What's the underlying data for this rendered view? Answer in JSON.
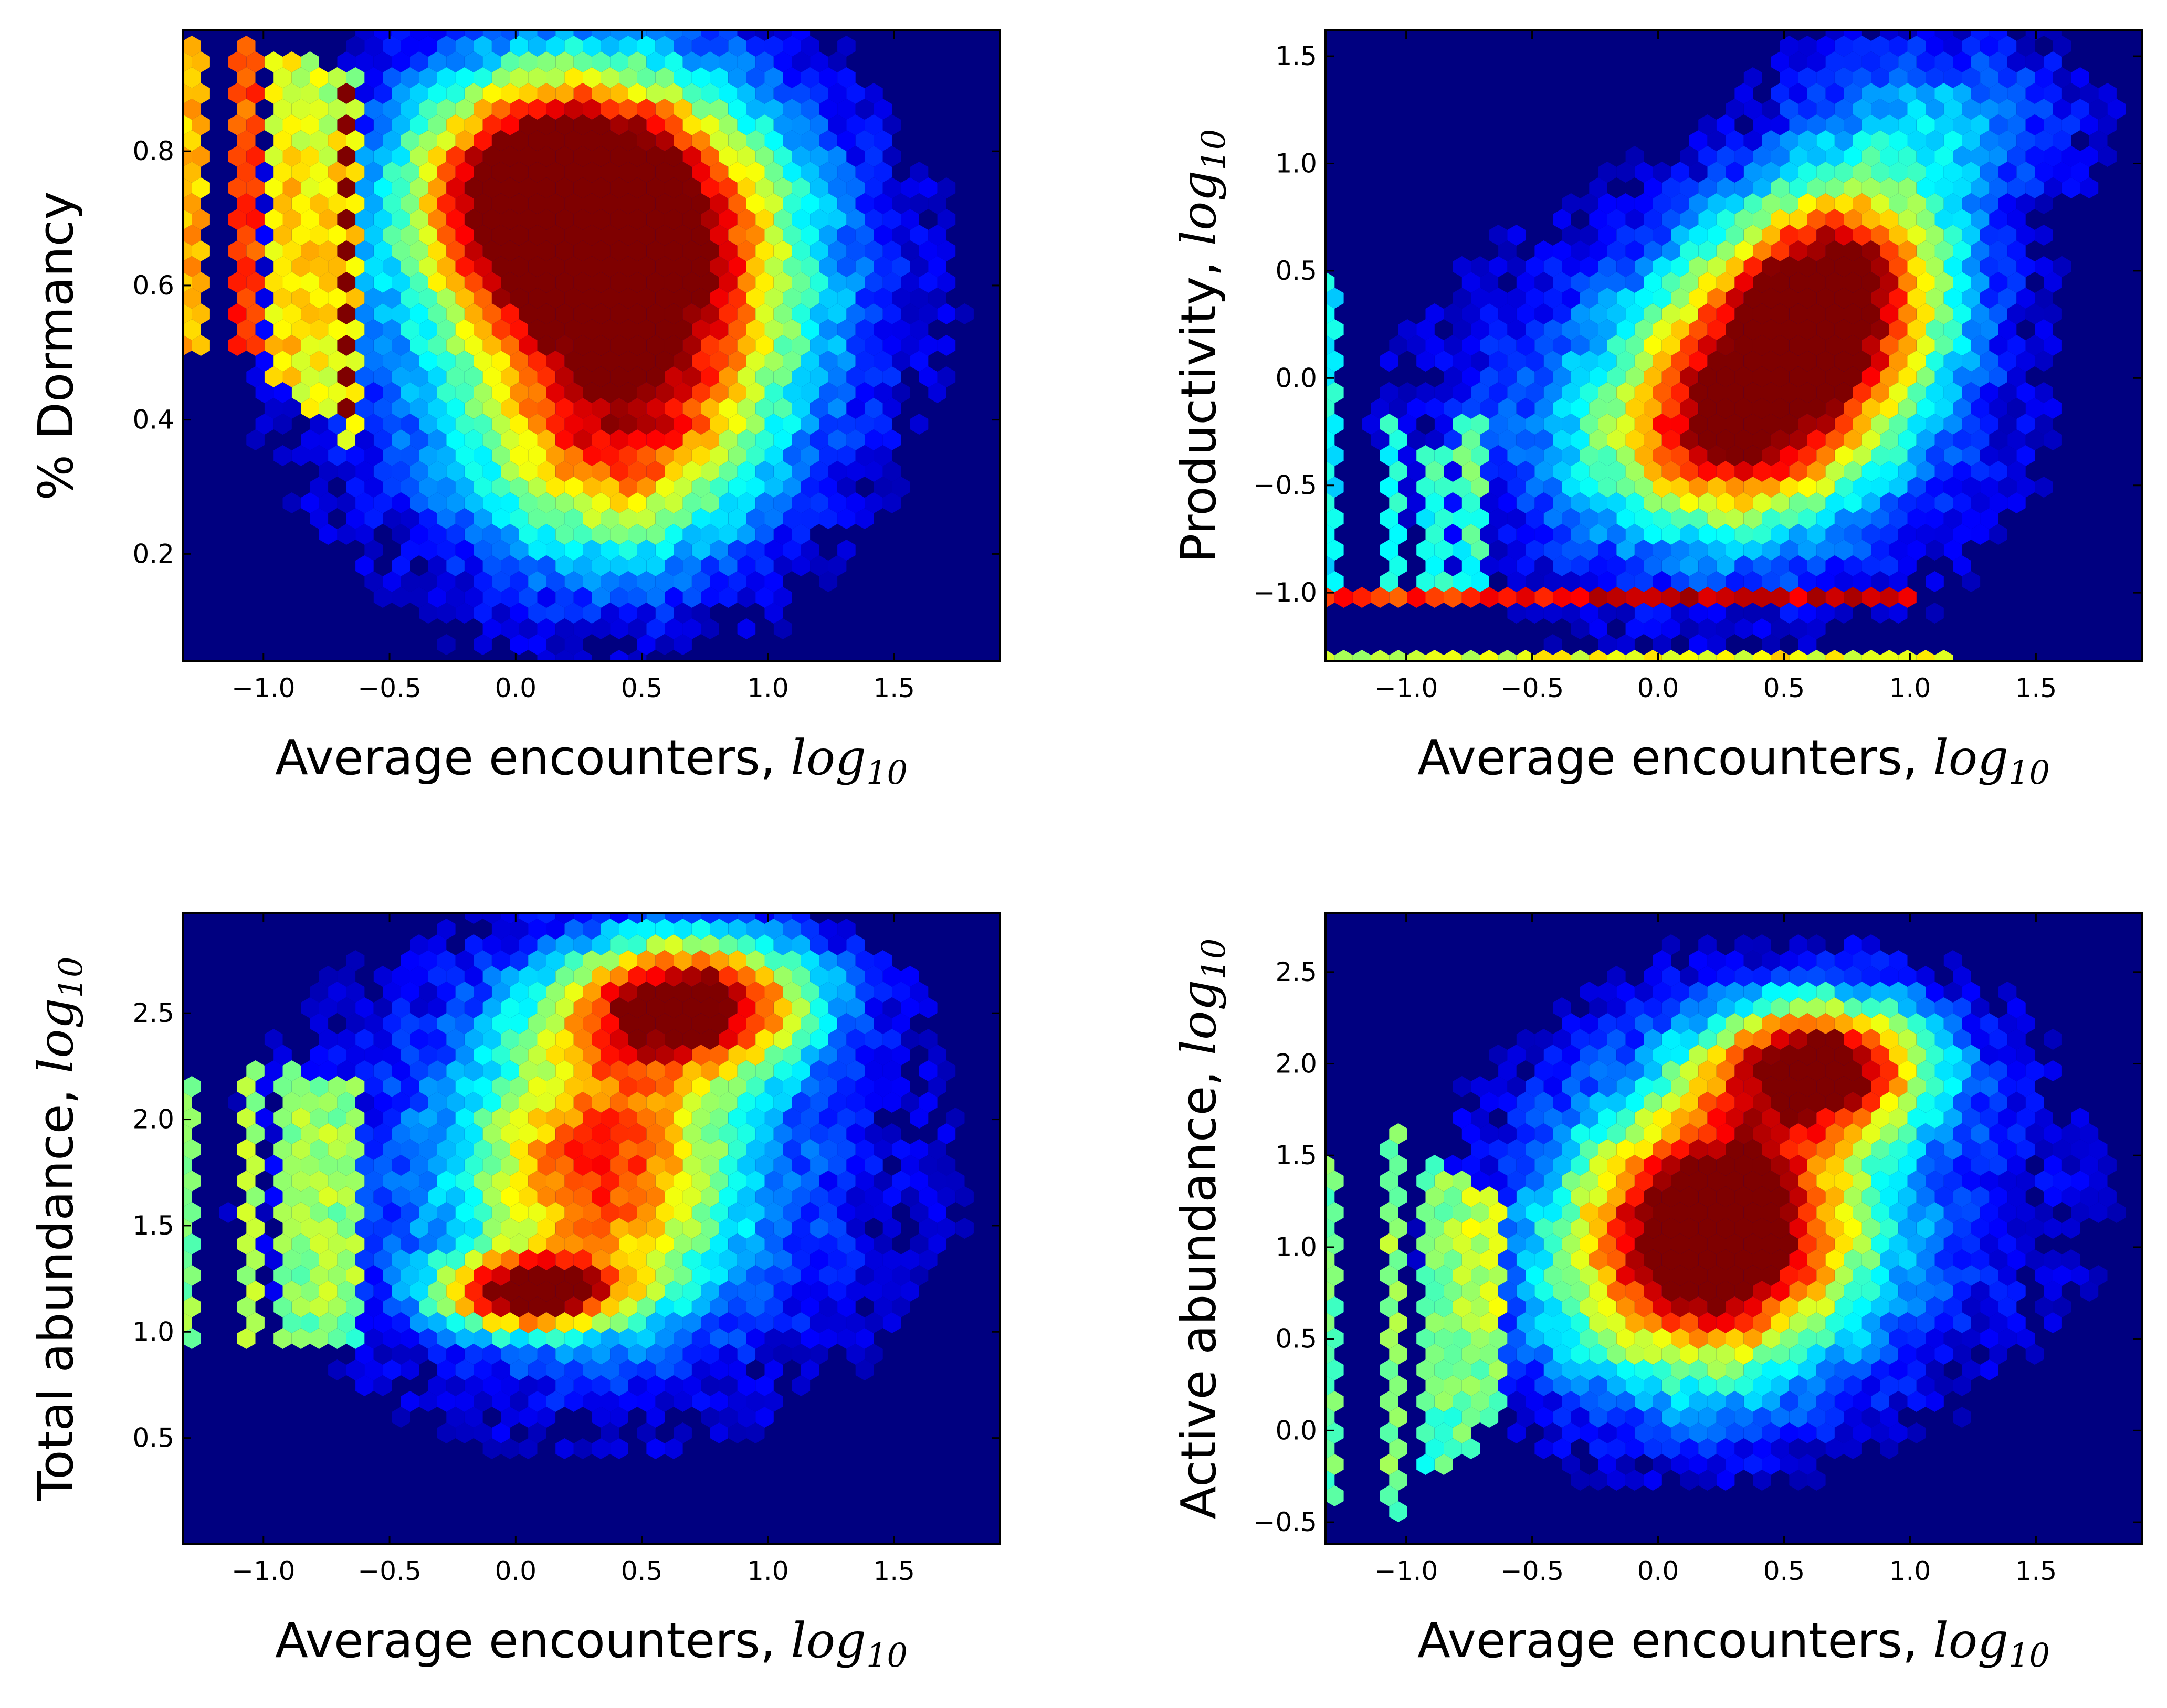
{
  "colors": {
    "background": "#000080",
    "colormap": [
      "#00007f",
      "#0000ff",
      "#007fff",
      "#00ffff",
      "#7fff7f",
      "#ffff00",
      "#ff7f00",
      "#ff0000",
      "#7f0000"
    ],
    "frame": "#000000"
  },
  "chart_data": [
    {
      "type": "heatmap",
      "subtype": "hexbin",
      "panel": "top-left",
      "xlabel": "Average encounters, ",
      "xlabel_math": "log10",
      "ylabel": "% Dormancy",
      "ylabel_math": "",
      "xlim": [
        -1.32,
        1.92
      ],
      "ylim": [
        0.04,
        0.98
      ],
      "xticks": [
        -1.0,
        -0.5,
        0.0,
        0.5,
        1.0,
        1.5
      ],
      "xtick_labels": [
        "−1.0",
        "−0.5",
        "0.0",
        "0.5",
        "1.0",
        "1.5"
      ],
      "yticks": [
        0.2,
        0.4,
        0.6,
        0.8
      ],
      "ytick_labels": [
        "0.2",
        "0.4",
        "0.6",
        "0.8"
      ],
      "density_blobs": [
        {
          "x": 0.15,
          "y": 0.74,
          "sx": 0.38,
          "sy": 0.12,
          "w": 1.0
        },
        {
          "x": 0.55,
          "y": 0.62,
          "sx": 0.45,
          "sy": 0.18,
          "w": 0.7
        },
        {
          "x": 0.4,
          "y": 0.35,
          "sx": 0.35,
          "sy": 0.12,
          "w": 0.45
        },
        {
          "x": 0.25,
          "y": 0.55,
          "sx": 0.7,
          "sy": 0.26,
          "w": 0.35
        }
      ],
      "density_stripes": [
        {
          "x": -1.28,
          "y0": 0.5,
          "y1": 0.97,
          "w": 0.7
        },
        {
          "x": -1.08,
          "y0": 0.5,
          "y1": 0.97,
          "w": 0.8
        },
        {
          "x": -0.92,
          "y0": 0.45,
          "y1": 0.95,
          "w": 0.6
        },
        {
          "x": -0.82,
          "y0": 0.4,
          "y1": 0.95,
          "w": 0.55
        },
        {
          "x": -0.72,
          "y0": 0.4,
          "y1": 0.93,
          "w": 0.5
        },
        {
          "x": -0.65,
          "y0": 0.35,
          "y1": 0.92,
          "w": 0.45
        }
      ],
      "density_lines": []
    },
    {
      "type": "heatmap",
      "subtype": "hexbin",
      "panel": "top-right",
      "xlabel": "Average encounters, ",
      "xlabel_math": "log10",
      "ylabel": "Productivity, ",
      "ylabel_math": "log10",
      "xlim": [
        -1.32,
        1.92
      ],
      "ylim": [
        -1.32,
        1.62
      ],
      "xticks": [
        -1.0,
        -0.5,
        0.0,
        0.5,
        1.0,
        1.5
      ],
      "xtick_labels": [
        "−1.0",
        "−0.5",
        "0.0",
        "0.5",
        "1.0",
        "1.5"
      ],
      "yticks": [
        -1.0,
        -0.5,
        0.0,
        0.5,
        1.0,
        1.5
      ],
      "ytick_labels": [
        "−1.0",
        "−0.5",
        "0.0",
        "0.5",
        "1.0",
        "1.5"
      ],
      "density_blobs": [
        {
          "x": 0.55,
          "y": 0.15,
          "sx": 0.35,
          "sy": 0.35,
          "w": 0.8
        },
        {
          "x": 0.75,
          "y": 0.55,
          "sx": 0.3,
          "sy": 0.3,
          "w": 0.65
        },
        {
          "x": 0.25,
          "y": -0.3,
          "sx": 0.35,
          "sy": 0.3,
          "w": 0.55
        },
        {
          "x": 0.2,
          "y": -0.2,
          "sx": 0.75,
          "sy": 0.6,
          "w": 0.3
        },
        {
          "x": 1.1,
          "y": 1.2,
          "sx": 0.4,
          "sy": 0.3,
          "w": 0.3
        }
      ],
      "density_stripes": [
        {
          "x": -1.3,
          "y0": -1.0,
          "y1": 0.5,
          "w": 0.35
        },
        {
          "x": -1.05,
          "y0": -0.95,
          "y1": -0.2,
          "w": 0.35
        },
        {
          "x": -0.9,
          "y0": -0.95,
          "y1": -0.3,
          "w": 0.35
        },
        {
          "x": -0.75,
          "y0": -0.95,
          "y1": -0.2,
          "w": 0.35
        }
      ],
      "density_lines": [
        {
          "y": -1.0,
          "x0": -1.32,
          "x1": 1.0,
          "w": 0.85
        },
        {
          "y": -1.3,
          "x0": -1.32,
          "x1": 1.2,
          "w": 0.6
        }
      ]
    },
    {
      "type": "heatmap",
      "subtype": "hexbin",
      "panel": "bottom-left",
      "xlabel": "Average encounters, ",
      "xlabel_math": "log10",
      "ylabel": "Total abundance, ",
      "ylabel_math": "log10",
      "xlim": [
        -1.32,
        1.92
      ],
      "ylim": [
        0.0,
        2.97
      ],
      "xticks": [
        -1.0,
        -0.5,
        0.0,
        0.5,
        1.0,
        1.5
      ],
      "xtick_labels": [
        "−1.0",
        "−0.5",
        "0.0",
        "0.5",
        "1.0",
        "1.5"
      ],
      "yticks": [
        0.5,
        1.0,
        1.5,
        2.0,
        2.5
      ],
      "ytick_labels": [
        "0.5",
        "1.0",
        "1.5",
        "2.0",
        "2.5"
      ],
      "density_blobs": [
        {
          "x": 0.05,
          "y": 1.18,
          "sx": 0.25,
          "sy": 0.12,
          "w": 0.9
        },
        {
          "x": 0.7,
          "y": 2.55,
          "sx": 0.35,
          "sy": 0.22,
          "w": 1.0
        },
        {
          "x": 0.35,
          "y": 1.8,
          "sx": 0.35,
          "sy": 0.45,
          "w": 0.6
        },
        {
          "x": 0.3,
          "y": 1.7,
          "sx": 0.8,
          "sy": 0.7,
          "w": 0.3
        }
      ],
      "density_stripes": [
        {
          "x": -1.3,
          "y0": 0.9,
          "y1": 2.2,
          "w": 0.5
        },
        {
          "x": -1.05,
          "y0": 0.9,
          "y1": 2.3,
          "w": 0.5
        },
        {
          "x": -0.9,
          "y0": 0.9,
          "y1": 2.3,
          "w": 0.45
        },
        {
          "x": -0.78,
          "y0": 0.9,
          "y1": 2.2,
          "w": 0.45
        },
        {
          "x": -0.68,
          "y0": 0.9,
          "y1": 2.2,
          "w": 0.4
        }
      ],
      "density_lines": []
    },
    {
      "type": "heatmap",
      "subtype": "hexbin",
      "panel": "bottom-right",
      "xlabel": "Average encounters, ",
      "xlabel_math": "log10",
      "ylabel": "Active abundance, ",
      "ylabel_math": "log10",
      "xlim": [
        -1.32,
        1.92
      ],
      "ylim": [
        -0.62,
        2.82
      ],
      "xticks": [
        -1.0,
        -0.5,
        0.0,
        0.5,
        1.0,
        1.5
      ],
      "xtick_labels": [
        "−1.0",
        "−0.5",
        "0.0",
        "0.5",
        "1.0",
        "1.5"
      ],
      "yticks": [
        -0.5,
        0.0,
        0.5,
        1.0,
        1.5,
        2.0,
        2.5
      ],
      "ytick_labels": [
        "−0.5",
        "0.0",
        "0.5",
        "1.0",
        "1.5",
        "2.0",
        "2.5"
      ],
      "density_blobs": [
        {
          "x": 0.65,
          "y": 2.0,
          "sx": 0.3,
          "sy": 0.25,
          "w": 1.0
        },
        {
          "x": 0.25,
          "y": 1.2,
          "sx": 0.35,
          "sy": 0.45,
          "w": 0.75
        },
        {
          "x": 0.1,
          "y": 0.8,
          "sx": 0.45,
          "sy": 0.5,
          "w": 0.5
        },
        {
          "x": 0.5,
          "y": 1.3,
          "sx": 0.75,
          "sy": 0.75,
          "w": 0.25
        }
      ],
      "density_stripes": [
        {
          "x": -1.3,
          "y0": -0.4,
          "y1": 1.5,
          "w": 0.5
        },
        {
          "x": -1.05,
          "y0": -0.5,
          "y1": 1.7,
          "w": 0.5
        },
        {
          "x": -0.9,
          "y0": -0.2,
          "y1": 1.5,
          "w": 0.45
        },
        {
          "x": -0.78,
          "y0": -0.1,
          "y1": 1.4,
          "w": 0.45
        },
        {
          "x": -0.68,
          "y0": 0.0,
          "y1": 1.3,
          "w": 0.4
        }
      ],
      "density_lines": []
    }
  ]
}
